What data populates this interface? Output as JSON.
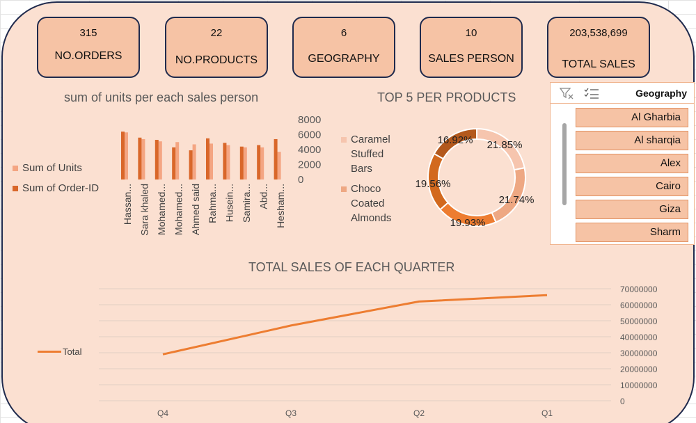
{
  "kpis": [
    {
      "value": "315",
      "label": "NO.ORDERS"
    },
    {
      "value": "22",
      "label": "NO.PRODUCTS"
    },
    {
      "value": "6",
      "label": "GEOGRAPHY"
    },
    {
      "value": "10",
      "label": "SALES PERSON"
    },
    {
      "value": "203,538,699",
      "label": "TOTAL SALES"
    }
  ],
  "slicer": {
    "title": "Geography",
    "items": [
      "Al Gharbia",
      "Al sharqia",
      "Alex",
      "Cairo",
      "Giza",
      "Sharm"
    ]
  },
  "colors": {
    "background": "#fbe0d1",
    "border": "#1f2a4d",
    "kpi_fill": "#f6c3a5",
    "units": "#f4a582",
    "orders": "#d9672a",
    "line": "#ed7d31"
  },
  "chart_data": [
    {
      "type": "bar",
      "title": "sum of units per each sales person",
      "categories": [
        "Hassan...",
        "Sara khaled",
        "Mohamed...",
        "Mohamed...",
        "Ahmed said",
        "Rahma...",
        "Husein...",
        "Samira...",
        "Abd...",
        "Hesham..."
      ],
      "series": [
        {
          "name": "Sum of Units",
          "color": "#f4a582",
          "values": [
            6300,
            5400,
            5100,
            5000,
            4700,
            4800,
            4600,
            4300,
            4300,
            3700
          ]
        },
        {
          "name": "Sum of Order-ID",
          "color": "#d9672a",
          "values": [
            6400,
            5600,
            5300,
            4300,
            3900,
            5500,
            4900,
            4400,
            4600,
            5400
          ]
        }
      ],
      "ylim": [
        0,
        8000
      ],
      "yticks": [
        "8000",
        "6000",
        "4000",
        "2000",
        "0"
      ],
      "legend": "left",
      "grid": false
    },
    {
      "type": "pie",
      "title": "TOP 5 PER PRODUCTS",
      "legend_entries": [
        "Caramel Stuffed Bars",
        "Choco Coated Almonds"
      ],
      "slices": [
        {
          "label": "21.85%",
          "value": 21.85,
          "color": "#f6c5ae"
        },
        {
          "label": "21.74%",
          "value": 21.74,
          "color": "#eea883"
        },
        {
          "label": "19.93%",
          "value": 19.93,
          "color": "#ed7d31"
        },
        {
          "label": "19.56%",
          "value": 19.56,
          "color": "#d2691e"
        },
        {
          "label": "16.92%",
          "value": 16.92,
          "color": "#b3591d"
        }
      ]
    },
    {
      "type": "line",
      "title": "TOTAL SALES OF EACH QUARTER",
      "categories": [
        "Q4",
        "Q3",
        "Q2",
        "Q1"
      ],
      "series": [
        {
          "name": "Total",
          "color": "#ed7d31",
          "values": [
            29000000,
            47000000,
            62000000,
            66000000
          ]
        }
      ],
      "ylim": [
        0,
        70000000
      ],
      "yticks": [
        "70000000",
        "60000000",
        "50000000",
        "40000000",
        "30000000",
        "20000000",
        "10000000",
        "0"
      ],
      "legend": "left",
      "grid": true
    }
  ]
}
